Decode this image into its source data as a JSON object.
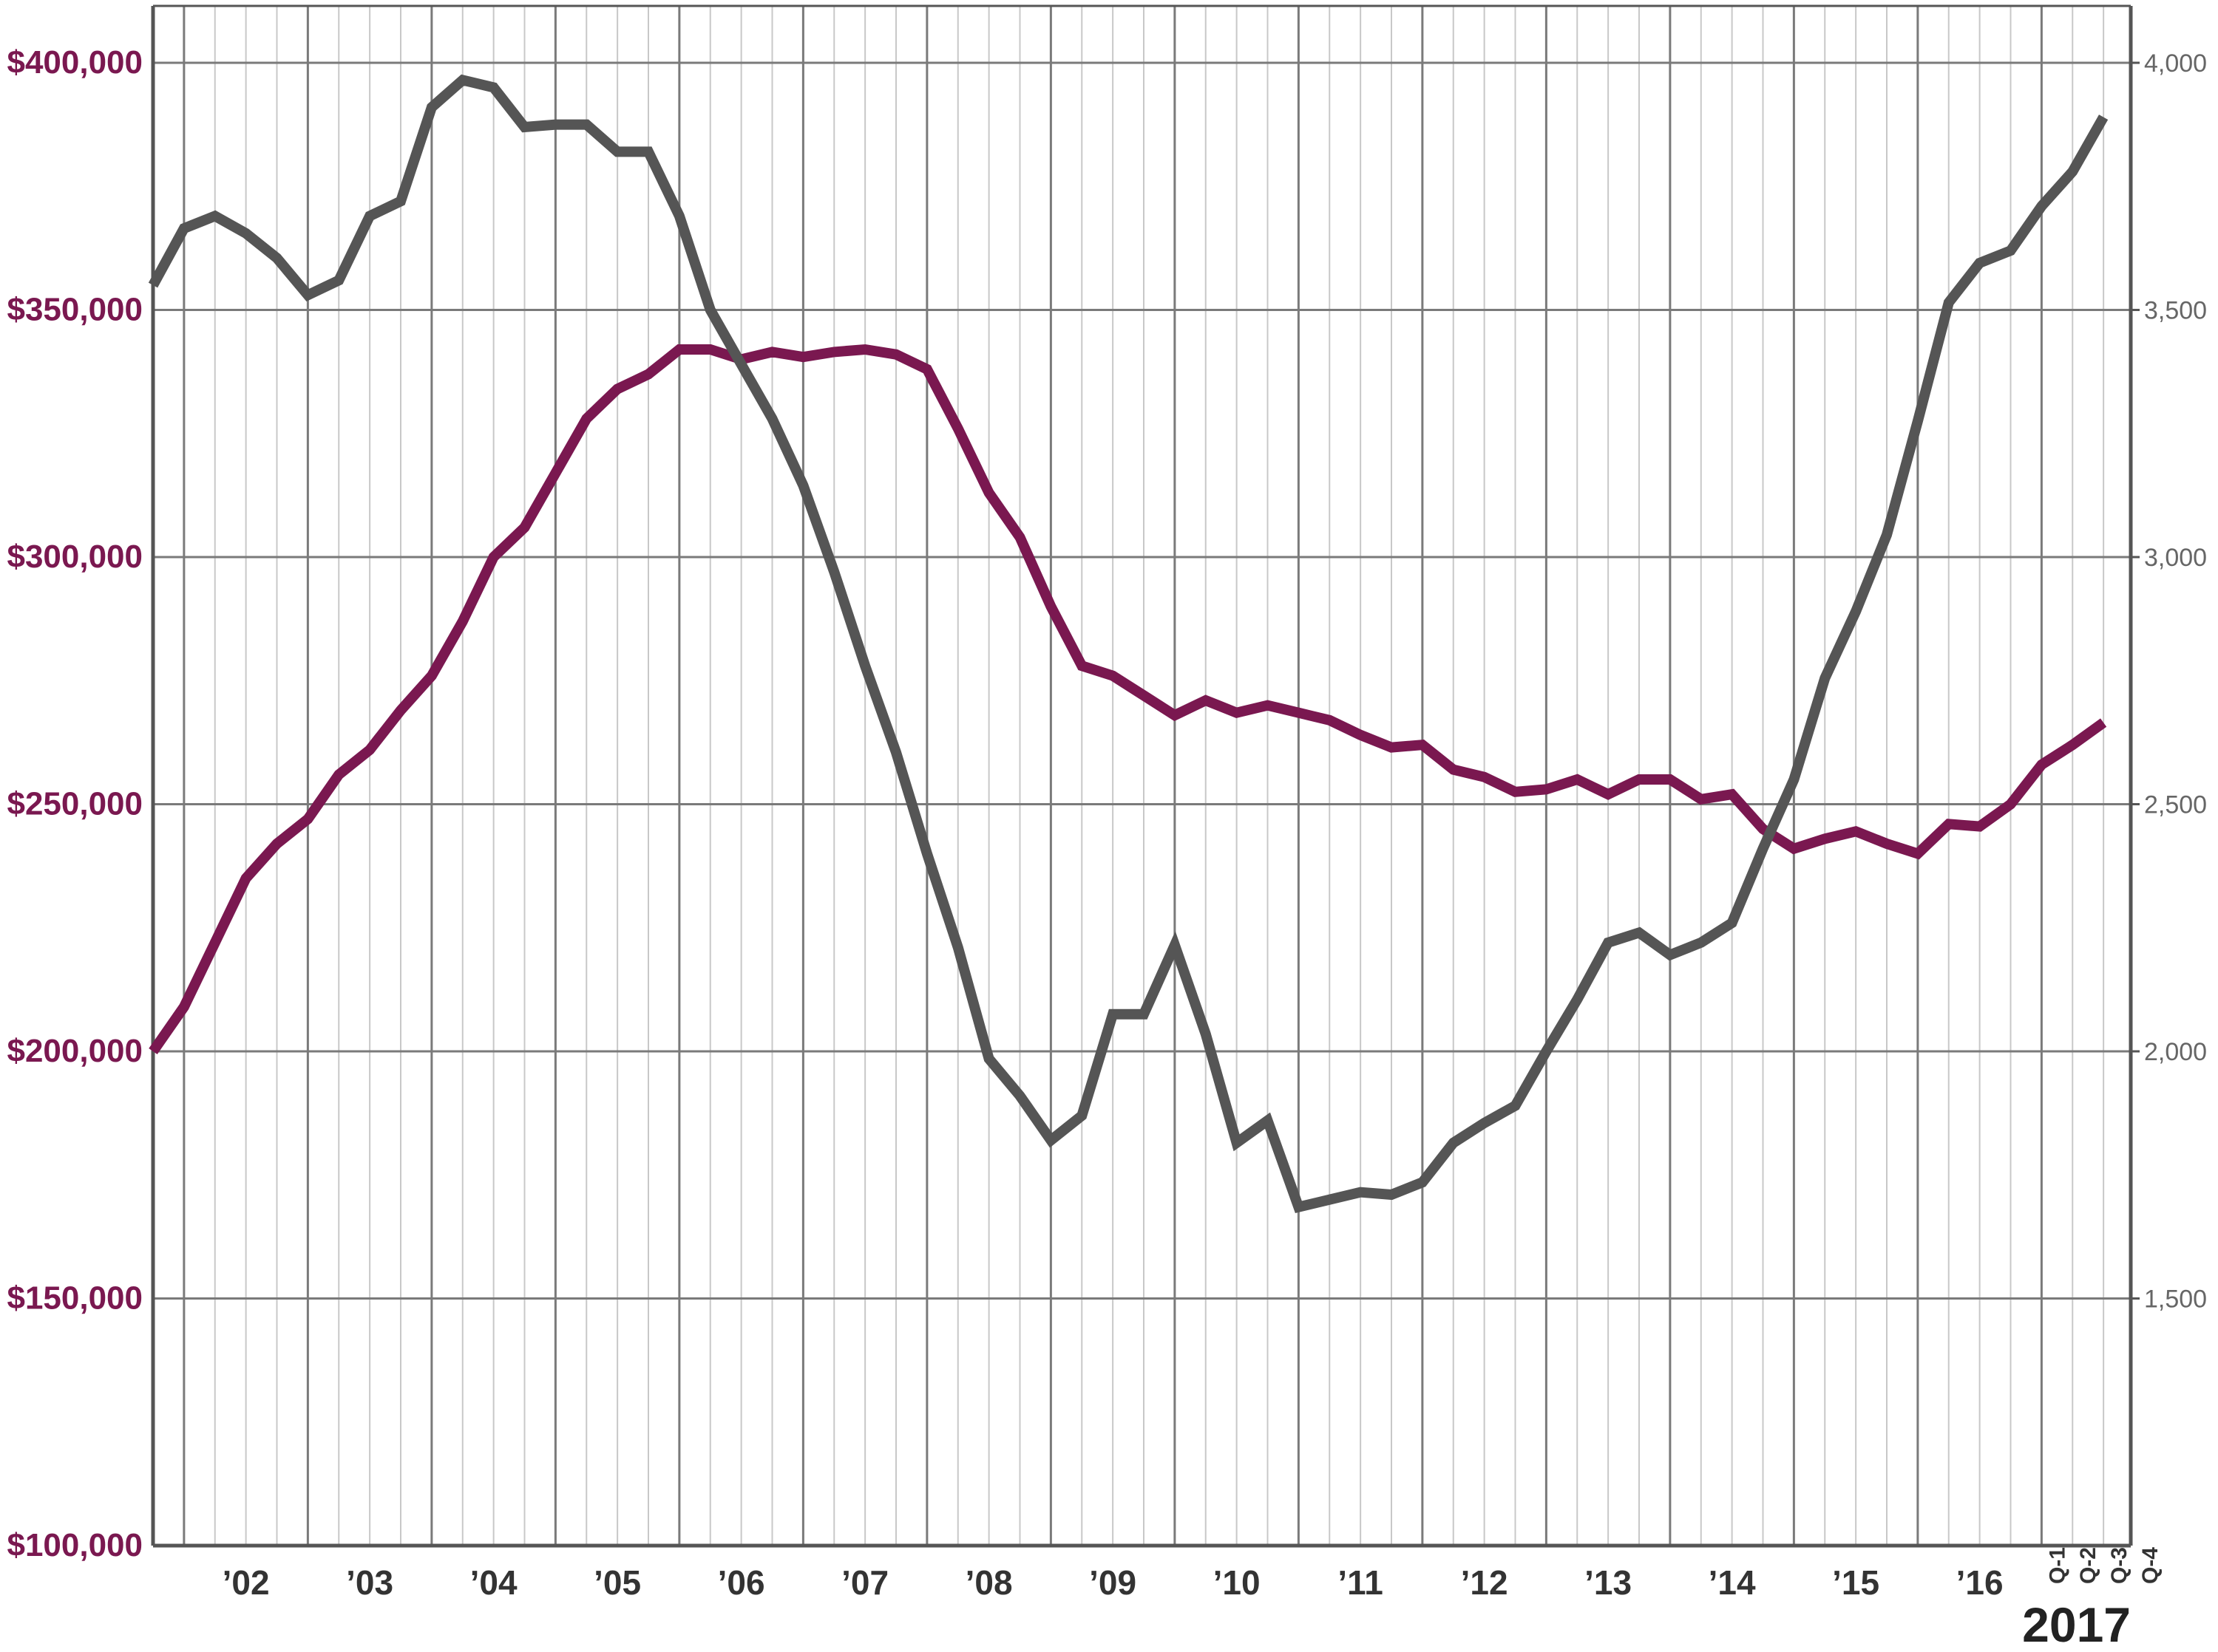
{
  "chart_data": {
    "type": "line",
    "title": "",
    "colors": {
      "price": "#7a1850",
      "count": "#555555",
      "grid_major": "#7a7a7a",
      "grid_minor": "#c8c8c8",
      "axis": "#555555",
      "left_ticks": "#7a1850",
      "right_ticks": "#666666",
      "x_ticks": "#333333"
    },
    "left_axis": {
      "ylim": [
        100000,
        400000
      ],
      "ticks": [
        100000,
        150000,
        200000,
        250000,
        300000,
        350000,
        400000
      ],
      "tick_labels": [
        "$100,000",
        "$150,000",
        "$200,000",
        "$250,000",
        "$300,000",
        "$350,000",
        "$400,000"
      ]
    },
    "right_axis": {
      "ylim": [
        1000,
        4000
      ],
      "ticks": [
        1500,
        2000,
        2500,
        3000,
        3500,
        4000
      ],
      "tick_labels": [
        "1,500",
        "2,000",
        "2,500",
        "3,000",
        "3,500",
        "4,000"
      ]
    },
    "x_axis": {
      "year_labels": [
        "’02",
        "’03",
        "’04",
        "’05",
        "’06",
        "’07",
        "’08",
        "’09",
        "’10",
        "’11",
        "’12",
        "’13",
        "’14",
        "’15",
        "’16"
      ],
      "quarter_labels": [
        "Q-1",
        "Q-2",
        "Q-3",
        "Q-4"
      ],
      "final_year_label": "2017"
    },
    "grid": true,
    "x_start": 2001.75,
    "x_step": 0.25,
    "series": [
      {
        "key": "price",
        "axis": "left",
        "values": [
          200000,
          209000,
          222000,
          235000,
          242000,
          247000,
          256000,
          261000,
          269000,
          276000,
          287000,
          300000,
          306000,
          317000,
          328000,
          334000,
          337000,
          342000,
          342000,
          340000,
          341500,
          340500,
          341500,
          342000,
          341000,
          338000,
          326000,
          313000,
          304000,
          290000,
          278000,
          276000,
          272000,
          268000,
          271000,
          268500,
          270000,
          268500,
          267000,
          264000,
          261500,
          262000,
          257000,
          255500,
          252500,
          253000,
          255000,
          252000,
          255000,
          255000,
          251000,
          252000,
          245000,
          241000,
          243000,
          244500,
          242000,
          240000,
          246000,
          245500,
          250000,
          258000,
          262000,
          266500
        ]
      },
      {
        "key": "count",
        "axis": "right",
        "values": [
          3550,
          3665,
          3690,
          3655,
          3605,
          3530,
          3560,
          3690,
          3720,
          3910,
          3965,
          3950,
          3870,
          3875,
          3875,
          3820,
          3820,
          3690,
          3500,
          3390,
          3280,
          3145,
          2970,
          2780,
          2605,
          2400,
          2210,
          1985,
          1910,
          1820,
          1870,
          2075,
          2075,
          2215,
          2035,
          1815,
          1860,
          1685,
          1700,
          1715,
          1710,
          1735,
          1815,
          1855,
          1890,
          2000,
          2105,
          2220,
          2240,
          2195,
          2220,
          2260,
          2410,
          2550,
          2755,
          2890,
          3045,
          3275,
          3515,
          3595,
          3620,
          3710,
          3780,
          3890
        ]
      }
    ]
  }
}
